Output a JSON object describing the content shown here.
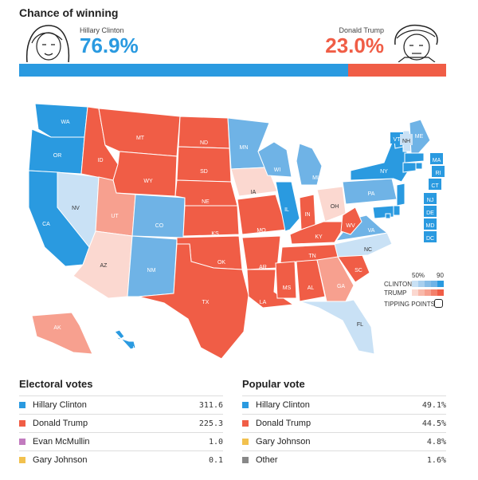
{
  "header": {
    "title": "Chance of winning",
    "clinton": {
      "name": "Hillary Clinton",
      "pct": "76.9%",
      "chance": 76.9
    },
    "trump": {
      "name": "Donald Trump",
      "pct": "23.0%",
      "chance": 23.0
    }
  },
  "colors": {
    "clinton": "#2a9ae0",
    "trump": "#f05d46",
    "mcmullin": "#c27bbf",
    "johnson": "#f2c14e",
    "other": "#888888"
  },
  "map": {
    "states": [
      {
        "abbr": "WA",
        "lean": "clinton"
      },
      {
        "abbr": "OR",
        "lean": "clinton"
      },
      {
        "abbr": "CA",
        "lean": "clinton"
      },
      {
        "abbr": "NV",
        "lean": "clinton-light"
      },
      {
        "abbr": "ID",
        "lean": "trump"
      },
      {
        "abbr": "MT",
        "lean": "trump"
      },
      {
        "abbr": "WY",
        "lean": "trump"
      },
      {
        "abbr": "UT",
        "lean": "trump-light"
      },
      {
        "abbr": "AZ",
        "lean": "trump-lighter"
      },
      {
        "abbr": "CO",
        "lean": "clinton-mid"
      },
      {
        "abbr": "NM",
        "lean": "clinton-mid"
      },
      {
        "abbr": "ND",
        "lean": "trump"
      },
      {
        "abbr": "SD",
        "lean": "trump"
      },
      {
        "abbr": "NE",
        "lean": "trump"
      },
      {
        "abbr": "KS",
        "lean": "trump"
      },
      {
        "abbr": "OK",
        "lean": "trump"
      },
      {
        "abbr": "TX",
        "lean": "trump"
      },
      {
        "abbr": "MN",
        "lean": "clinton-mid"
      },
      {
        "abbr": "IA",
        "lean": "trump-lighter"
      },
      {
        "abbr": "MO",
        "lean": "trump"
      },
      {
        "abbr": "AR",
        "lean": "trump"
      },
      {
        "abbr": "LA",
        "lean": "trump"
      },
      {
        "abbr": "WI",
        "lean": "clinton-mid"
      },
      {
        "abbr": "IL",
        "lean": "clinton"
      },
      {
        "abbr": "MI",
        "lean": "clinton-mid"
      },
      {
        "abbr": "IN",
        "lean": "trump"
      },
      {
        "abbr": "OH",
        "lean": "trump-lighter"
      },
      {
        "abbr": "KY",
        "lean": "trump"
      },
      {
        "abbr": "TN",
        "lean": "trump"
      },
      {
        "abbr": "MS",
        "lean": "trump"
      },
      {
        "abbr": "AL",
        "lean": "trump"
      },
      {
        "abbr": "GA",
        "lean": "trump-light"
      },
      {
        "abbr": "FL",
        "lean": "clinton-light"
      },
      {
        "abbr": "SC",
        "lean": "trump"
      },
      {
        "abbr": "NC",
        "lean": "clinton-light"
      },
      {
        "abbr": "VA",
        "lean": "clinton-mid"
      },
      {
        "abbr": "WV",
        "lean": "trump"
      },
      {
        "abbr": "PA",
        "lean": "clinton-mid"
      },
      {
        "abbr": "NY",
        "lean": "clinton"
      },
      {
        "abbr": "VT",
        "lean": "clinton"
      },
      {
        "abbr": "NH",
        "lean": "clinton-light"
      },
      {
        "abbr": "ME",
        "lean": "clinton-mid"
      },
      {
        "abbr": "MA",
        "lean": "clinton"
      },
      {
        "abbr": "RI",
        "lean": "clinton"
      },
      {
        "abbr": "CT",
        "lean": "clinton"
      },
      {
        "abbr": "NJ",
        "lean": "clinton"
      },
      {
        "abbr": "DE",
        "lean": "clinton"
      },
      {
        "abbr": "MD",
        "lean": "clinton"
      },
      {
        "abbr": "DC",
        "lean": "clinton"
      },
      {
        "abbr": "AK",
        "lean": "trump-light"
      },
      {
        "abbr": "HI",
        "lean": "clinton"
      }
    ]
  },
  "legend": {
    "clinton_label": "CLINTON",
    "trump_label": "TRUMP",
    "tick_50": "50%",
    "tick_90": "90",
    "tipping_points": "TIPPING POINTS"
  },
  "electoral": {
    "title": "Electoral votes",
    "rows": [
      {
        "name": "Hillary Clinton",
        "value": "311.6",
        "color": "#2a9ae0"
      },
      {
        "name": "Donald Trump",
        "value": "225.3",
        "color": "#f05d46"
      },
      {
        "name": "Evan McMullin",
        "value": "1.0",
        "color": "#c27bbf"
      },
      {
        "name": "Gary Johnson",
        "value": "0.1",
        "color": "#f2c14e"
      }
    ]
  },
  "popular": {
    "title": "Popular vote",
    "rows": [
      {
        "name": "Hillary Clinton",
        "value": "49.1%",
        "color": "#2a9ae0"
      },
      {
        "name": "Donald Trump",
        "value": "44.5%",
        "color": "#f05d46"
      },
      {
        "name": "Gary Johnson",
        "value": "4.8%",
        "color": "#f2c14e"
      },
      {
        "name": "Other",
        "value": "1.6%",
        "color": "#888888"
      }
    ]
  }
}
